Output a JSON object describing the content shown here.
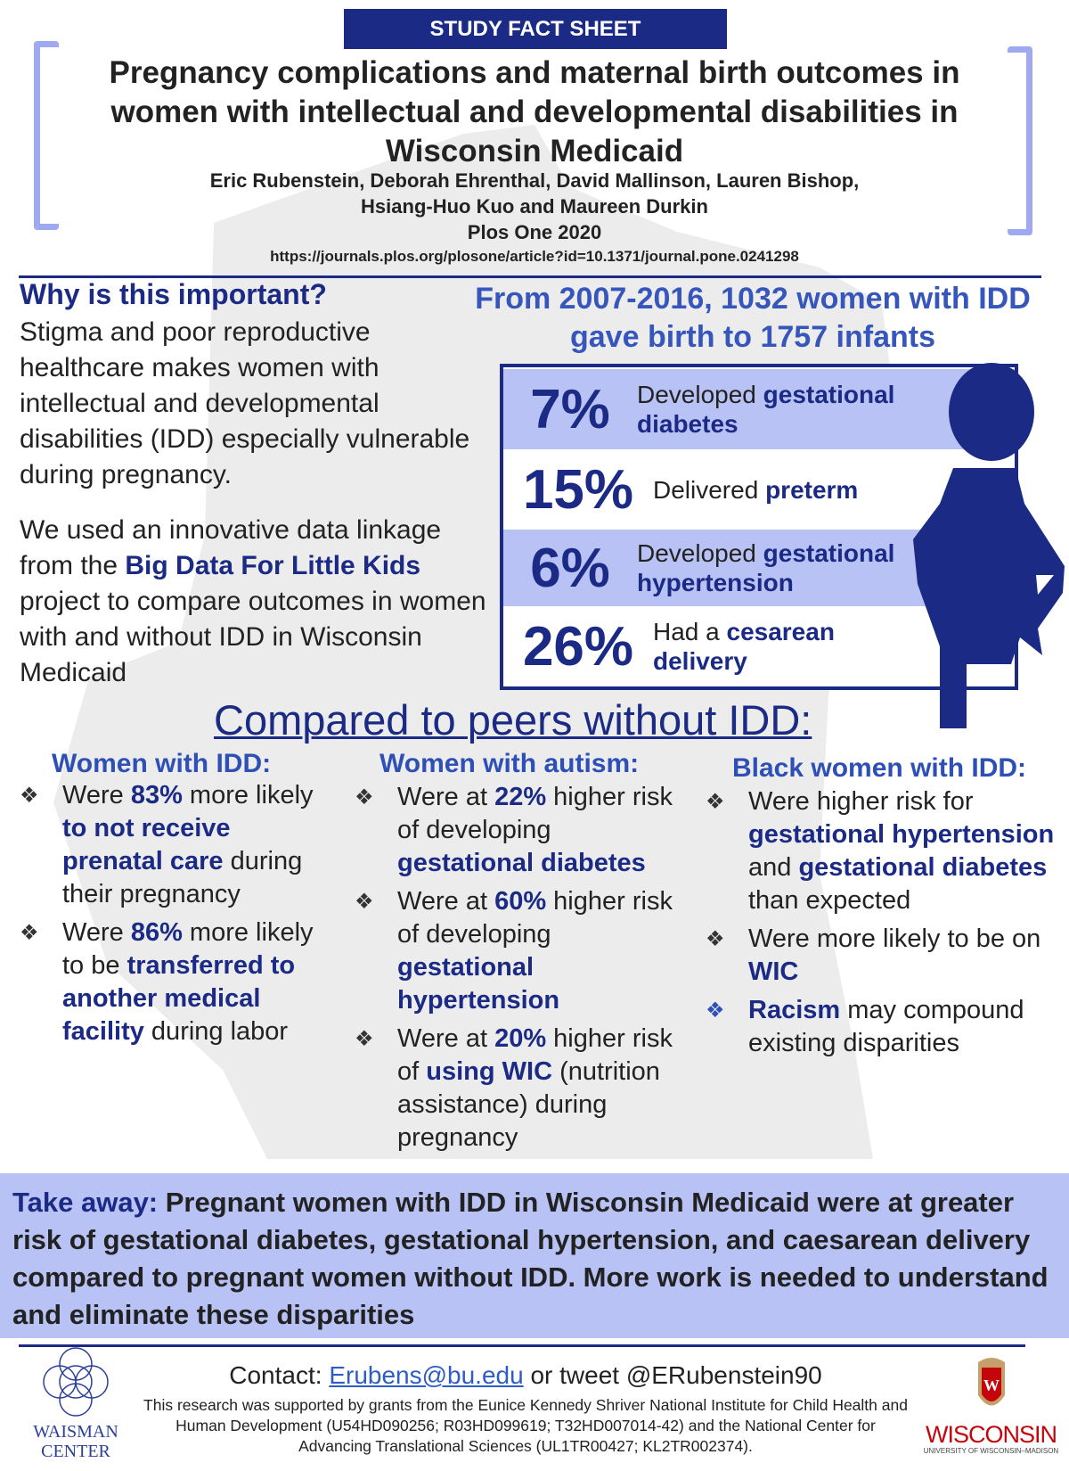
{
  "banner": "STUDY FACT SHEET",
  "title": "Pregnancy complications and maternal birth outcomes in women with intellectual and developmental disabilities in Wisconsin Medicaid",
  "authors_line1": "Eric Rubenstein, Deborah Ehrenthal, David Mallinson, Lauren Bishop,",
  "authors_line2": "Hsiang-Huo Kuo and Maureen Durkin",
  "journal": "Plos One 2020",
  "url": "https://journals.plos.org/plosone/article?id=10.1371/journal.pone.0241298",
  "why": {
    "heading": "Why is this important?",
    "text": "Stigma and poor reproductive healthcare makes women with intellectual and developmental disabilities (IDD) especially vulnerable during pregnancy.",
    "used_pre": "We used an innovative data linkage from the ",
    "used_link": "Big Data For Little Kids",
    "used_post": " project to compare outcomes in women with and without IDD in Wisconsin Medicaid"
  },
  "summary": "From 2007-2016, 1032 women with IDD gave birth to 1757 infants",
  "stats": [
    {
      "pct": "7%",
      "pre": "Developed ",
      "key": "gestational diabetes"
    },
    {
      "pct": "15%",
      "pre": "Delivered ",
      "key": "preterm"
    },
    {
      "pct": "6%",
      "pre": "Developed ",
      "key": "gestational hypertension"
    },
    {
      "pct": "26%",
      "pre": "Had a ",
      "key": "cesarean delivery"
    }
  ],
  "compare_heading": "Compared to peers without IDD:",
  "col1": {
    "heading": "Women with IDD:",
    "items": [
      {
        "a": "Were ",
        "b": "83%",
        "c": " more likely ",
        "d": "to not receive prenatal care",
        "e": " during their pregnancy"
      },
      {
        "a": "Were ",
        "b": "86%",
        "c": " more likely to be ",
        "d": "transferred to another medical facility",
        "e": " during labor"
      }
    ]
  },
  "col2": {
    "heading": "Women with autism:",
    "items": [
      {
        "a": "Were at ",
        "b": "22%",
        "c": " higher risk of developing ",
        "d": "gestational diabetes",
        "e": ""
      },
      {
        "a": "Were at ",
        "b": "60%",
        "c": " higher risk of developing ",
        "d": "gestational hypertension",
        "e": ""
      },
      {
        "a": "Were at ",
        "b": "20%",
        "c": " higher risk of ",
        "d": "using WIC",
        "e": " (nutrition assistance) during pregnancy"
      }
    ]
  },
  "col3": {
    "heading": "Black women with IDD:",
    "items": [
      {
        "a": "Were higher risk for ",
        "b": "gestational hypertension",
        "c": " and ",
        "d": "gestational diabetes",
        "e": " than expected"
      },
      {
        "a": "Were more likely to be on ",
        "b": "WIC",
        "c": "",
        "d": "",
        "e": ""
      },
      {
        "a": "",
        "b": "Racism",
        "c": " may compound existing disparities",
        "d": "",
        "e": ""
      }
    ]
  },
  "takeaway": {
    "label": "Take away:",
    "text": " Pregnant women with IDD in Wisconsin Medicaid were at greater risk of gestational diabetes, gestational hypertension, and caesarean delivery compared to pregnant women without IDD. More work is needed to understand and eliminate these disparities"
  },
  "footer": {
    "contact_label": "Contact: ",
    "email": "Erubens@bu.edu",
    "tweet": " or tweet @ERubenstein90",
    "grant": "This research was supported by grants from the Eunice Kennedy Shriver National Institute for Child Health and Human Development (U54HD090256; R03HD099619; T32HD007014-42) and the National Center for Advancing Translational Sciences (UL1TR00427; KL2TR002374).",
    "waisman_line1": "WAISMAN",
    "waisman_line2": "CENTER",
    "wisc": "WISCONSIN",
    "wisc_sub": "UNIVERSITY OF WISCONSIN–MADISON"
  },
  "colors": {
    "navy": "#1b2a84",
    "light_blue": "#b8c2f5",
    "heading_blue": "#2e4fb5",
    "bracket": "#9ea9ef"
  }
}
